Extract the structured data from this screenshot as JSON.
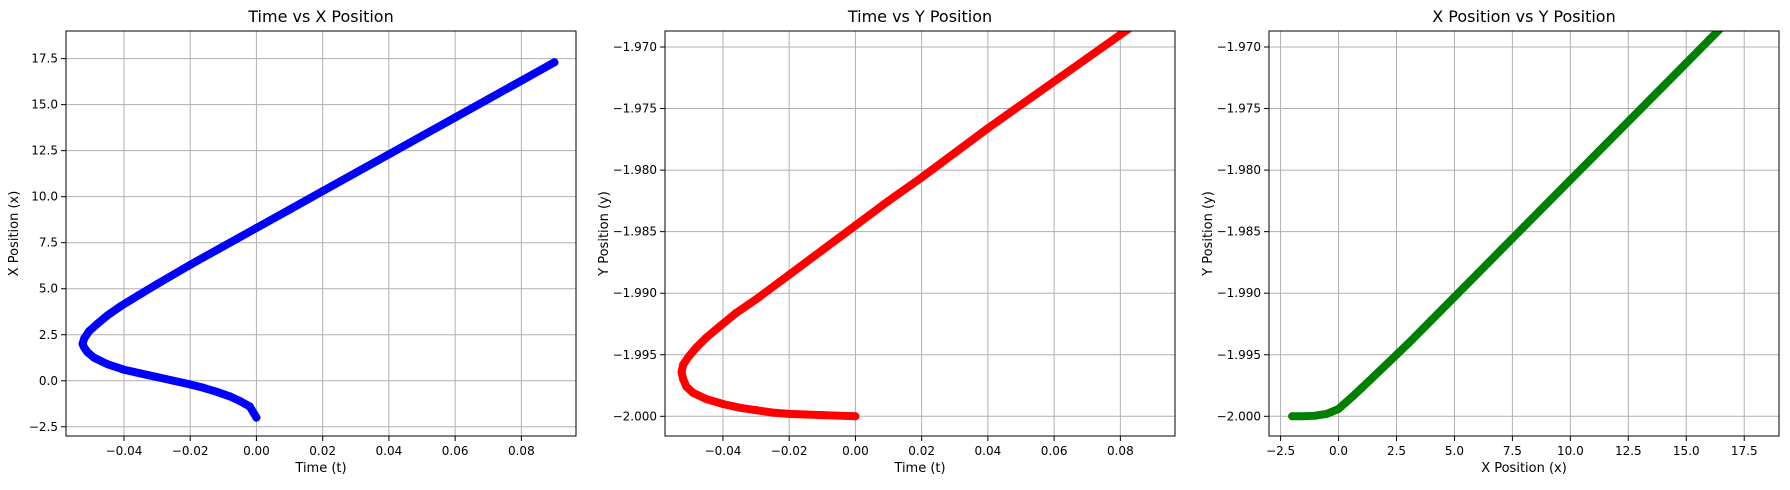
{
  "chart_data": [
    {
      "type": "scatter",
      "title": "Time vs X Position",
      "xlabel": "Time (t)",
      "ylabel": "X Position (x)",
      "xlim": [
        -0.0575,
        0.0965
      ],
      "ylim": [
        -3.0,
        19.0
      ],
      "xticks": [
        -0.04,
        -0.02,
        0.0,
        0.02,
        0.04,
        0.06,
        0.08
      ],
      "xtick_labels": [
        "−0.04",
        "−0.02",
        "0.00",
        "0.02",
        "0.04",
        "0.06",
        "0.08"
      ],
      "yticks": [
        -2.5,
        0.0,
        2.5,
        5.0,
        7.5,
        10.0,
        12.5,
        15.0,
        17.5
      ],
      "ytick_labels": [
        "−2.5",
        "0.0",
        "2.5",
        "5.0",
        "7.5",
        "10.0",
        "12.5",
        "15.0",
        "17.5"
      ],
      "grid": true,
      "color": "#0000ff",
      "series": [
        {
          "x": [
            0.0,
            -0.002,
            -0.005,
            -0.008,
            -0.012,
            -0.016,
            -0.02,
            -0.025,
            -0.03,
            -0.035,
            -0.04,
            -0.045,
            -0.049,
            -0.051,
            -0.052,
            -0.0525,
            -0.052,
            -0.0505,
            -0.048,
            -0.045,
            -0.041,
            -0.036,
            -0.03,
            -0.02,
            -0.01,
            0.0,
            0.01,
            0.02,
            0.03,
            0.04,
            0.05,
            0.06,
            0.07,
            0.08,
            0.09
          ],
          "y": [
            -2.0,
            -1.4,
            -1.1,
            -0.85,
            -0.6,
            -0.38,
            -0.2,
            0.0,
            0.2,
            0.4,
            0.6,
            0.9,
            1.25,
            1.55,
            1.8,
            2.0,
            2.3,
            2.7,
            3.1,
            3.55,
            4.05,
            4.6,
            5.25,
            6.3,
            7.3,
            8.3,
            9.3,
            10.3,
            11.3,
            12.3,
            13.3,
            14.3,
            15.3,
            16.3,
            17.3
          ]
        }
      ]
    },
    {
      "type": "scatter",
      "title": "Time vs Y Position",
      "xlabel": "Time (t)",
      "ylabel": "Y Position (y)",
      "xlim": [
        -0.0575,
        0.0965
      ],
      "ylim": [
        -2.0016,
        -1.9687
      ],
      "xticks": [
        -0.04,
        -0.02,
        0.0,
        0.02,
        0.04,
        0.06,
        0.08
      ],
      "xtick_labels": [
        "−0.04",
        "−0.02",
        "0.00",
        "0.02",
        "0.04",
        "0.06",
        "0.08"
      ],
      "yticks": [
        -2.0,
        -1.995,
        -1.99,
        -1.985,
        -1.98,
        -1.975,
        -1.97
      ],
      "ytick_labels": [
        "−2.000",
        "−1.995",
        "−1.990",
        "−1.985",
        "−1.980",
        "−1.975",
        "−1.970"
      ],
      "grid": true,
      "color": "#ff0000",
      "series": [
        {
          "x": [
            0.0,
            -0.005,
            -0.01,
            -0.015,
            -0.02,
            -0.025,
            -0.03,
            -0.035,
            -0.04,
            -0.045,
            -0.049,
            -0.051,
            -0.052,
            -0.0525,
            -0.052,
            -0.0505,
            -0.048,
            -0.045,
            -0.041,
            -0.036,
            -0.03,
            -0.02,
            -0.01,
            0.0,
            0.01,
            0.02,
            0.03,
            0.04,
            0.05,
            0.06,
            0.07,
            0.08,
            0.09
          ],
          "y": [
            -2.0,
            -1.99995,
            -1.9999,
            -1.99985,
            -1.9998,
            -1.9997,
            -1.9995,
            -1.9993,
            -1.999,
            -1.9986,
            -1.9981,
            -1.9976,
            -1.997,
            -1.9964,
            -1.9958,
            -1.9952,
            -1.9944,
            -1.9936,
            -1.9927,
            -1.9916,
            -1.9905,
            -1.9885,
            -1.9865,
            -1.9845,
            -1.9825,
            -1.9806,
            -1.9786,
            -1.9766,
            -1.9747,
            -1.9728,
            -1.9709,
            -1.969,
            -1.9671
          ]
        }
      ]
    },
    {
      "type": "scatter",
      "title": "X Position vs Y Position",
      "xlabel": "X Position (x)",
      "ylabel": "Y Position (y)",
      "xlim": [
        -3.0,
        19.0
      ],
      "ylim": [
        -2.0016,
        -1.9687
      ],
      "xticks": [
        -2.5,
        0.0,
        2.5,
        5.0,
        7.5,
        10.0,
        12.5,
        15.0,
        17.5
      ],
      "xtick_labels": [
        "−2.5",
        "0.0",
        "2.5",
        "5.0",
        "7.5",
        "10.0",
        "12.5",
        "15.0",
        "17.5"
      ],
      "yticks": [
        -2.0,
        -1.995,
        -1.99,
        -1.985,
        -1.98,
        -1.975,
        -1.97
      ],
      "ytick_labels": [
        "−2.000",
        "−1.995",
        "−1.990",
        "−1.985",
        "−1.980",
        "−1.975",
        "−1.970"
      ],
      "grid": true,
      "color": "#008000",
      "series": [
        {
          "x": [
            -2.0,
            -1.5,
            -1.0,
            -0.5,
            0.0,
            0.3,
            0.6,
            1.0,
            1.5,
            2.0,
            2.5,
            3.0,
            4.0,
            5.0,
            6.0,
            7.0,
            8.0,
            9.0,
            10.0,
            11.0,
            12.0,
            13.0,
            14.0,
            15.0,
            16.0,
            17.0,
            18.0
          ],
          "y": [
            -2.0,
            -2.0,
            -1.99995,
            -1.9998,
            -1.9994,
            -1.9989,
            -1.9984,
            -1.9977,
            -1.9968,
            -1.9959,
            -1.995,
            -1.9941,
            -1.9922,
            -1.9903,
            -1.9884,
            -1.9865,
            -1.9846,
            -1.9827,
            -1.9808,
            -1.9789,
            -1.977,
            -1.9751,
            -1.9732,
            -1.9713,
            -1.9694,
            -1.9675,
            -1.967
          ]
        }
      ]
    }
  ]
}
